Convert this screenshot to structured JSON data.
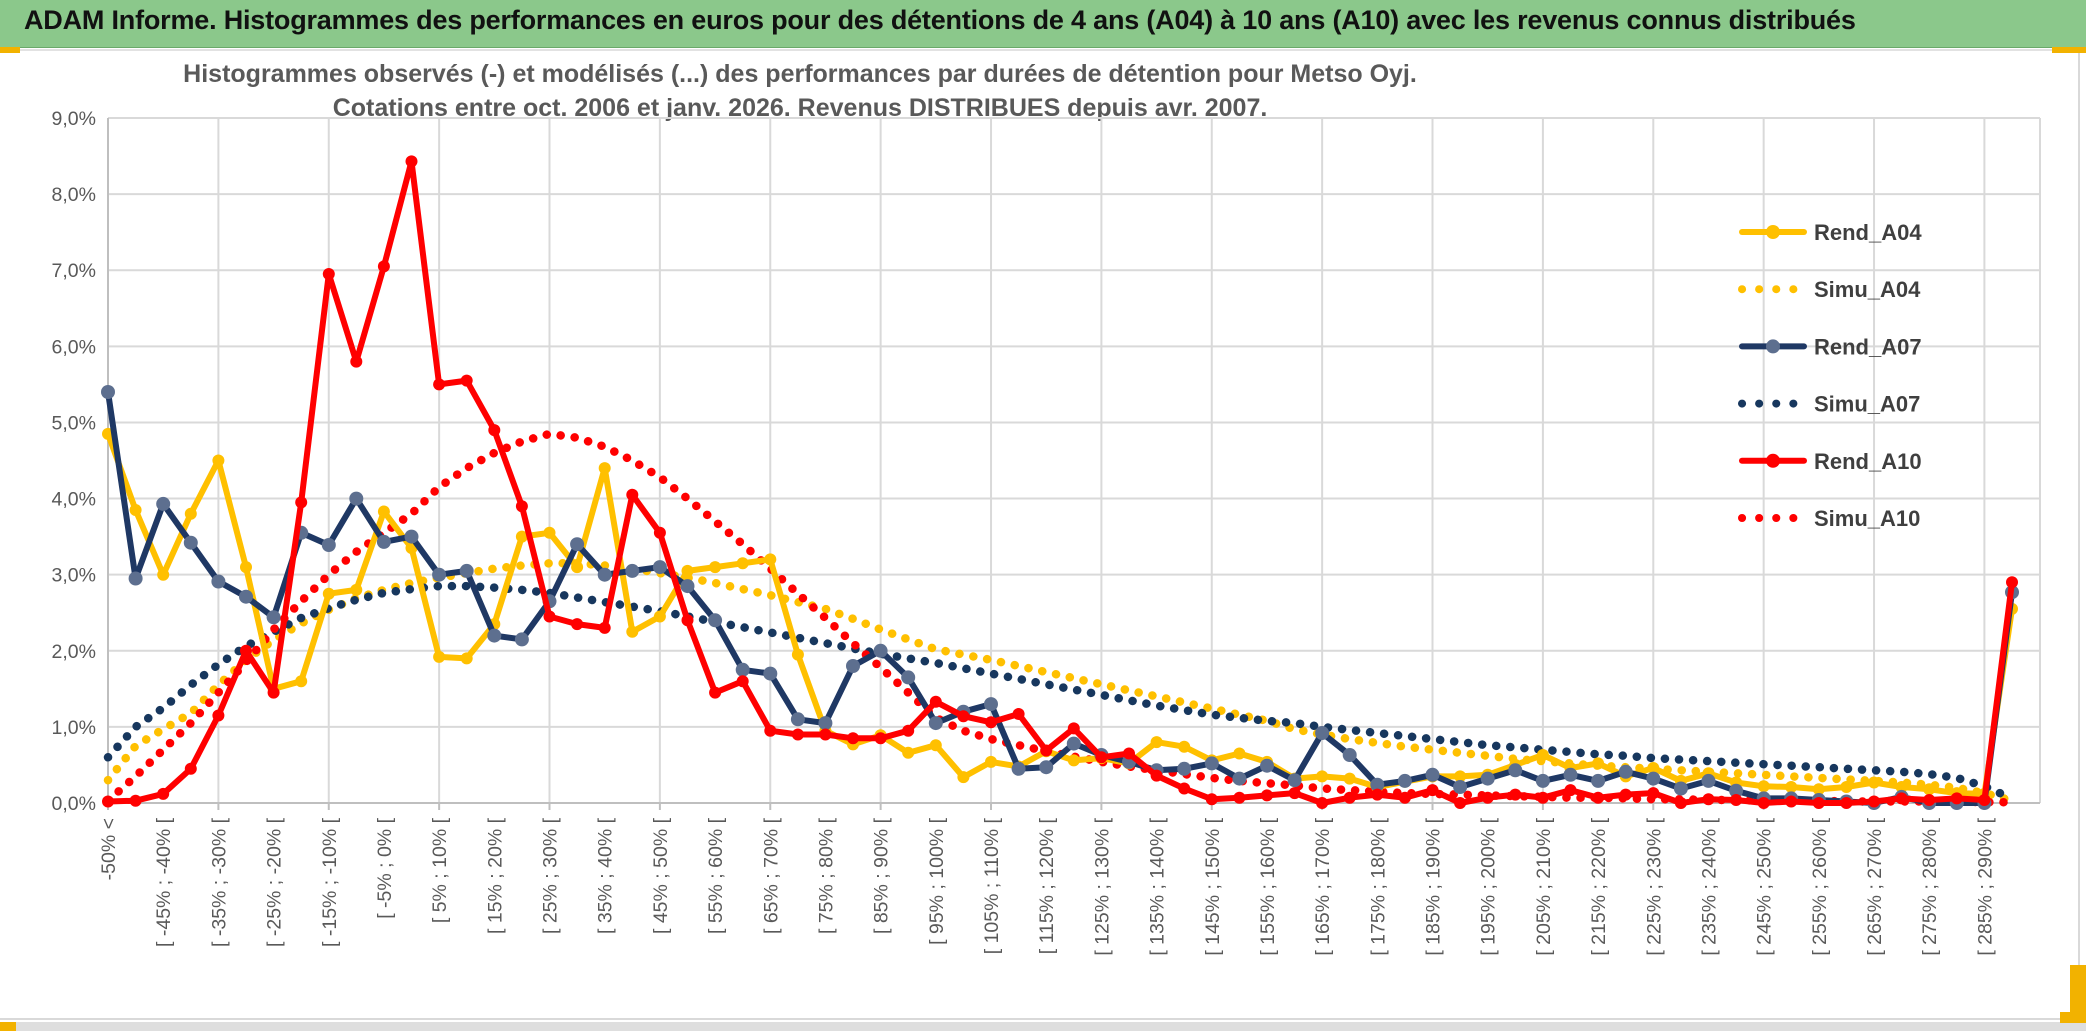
{
  "header": {
    "title": "ADAM Informe. Histogrammes des performances en euros pour des détentions de 4 ans (A04) à 10 ans (A10) avec les revenus connus distribués"
  },
  "colors": {
    "header_green": "#8bc88b",
    "gold_accent": "#f2b200",
    "grid": "#d9d9d9",
    "axis": "#bfbfbf",
    "axis_text": "#595959",
    "title_text": "#595959",
    "legend_text": "#3f3f3f",
    "series_gold": "#FFC000",
    "series_navy": "#1F3864",
    "series_navy_marker": "#5d6f8f",
    "series_red": "#FF0000"
  },
  "chart_data": {
    "type": "line",
    "title_line1": "Histogrammes observés (-) et modélisés (...) des performances par durées de détention pour Metso Oyj.",
    "title_line2": "Cotations entre oct. 2006 et janv. 2026. Revenus DISTRIBUES depuis avr. 2007.",
    "ylabel": "",
    "xlabel": "",
    "ylim": [
      0,
      9
    ],
    "grid": true,
    "legend_position": "right-upper",
    "x_label_every": 2,
    "y_tick_labels": [
      "0,0%",
      "1,0%",
      "2,0%",
      "3,0%",
      "4,0%",
      "5,0%",
      "6,0%",
      "7,0%",
      "8,0%",
      "9,0%"
    ],
    "categories": [
      "-50% <",
      "",
      "[ -45% ; -40% [",
      "",
      "[ -35% ; -30% [",
      "",
      "[ -25% ; -20% [",
      "",
      "[ -15% ; -10% [",
      "",
      "[ -5% ; 0% [",
      "",
      "[ 5% ; 10% [",
      "",
      "[ 15% ; 20% [",
      "",
      "[ 25% ; 30% [",
      "",
      "[ 35% ; 40% [",
      "",
      "[ 45% ; 50% [",
      "",
      "[ 55% ; 60% [",
      "",
      "[ 65% ; 70% [",
      "",
      "[ 75% ; 80% [",
      "",
      "[ 85% ; 90% [",
      "",
      "[ 95% ; 100% [",
      "",
      "[ 105% ; 110% [",
      "",
      "[ 115% ; 120% [",
      "",
      "[ 125% ; 130% [",
      "",
      "[ 135% ; 140% [",
      "",
      "[ 145% ; 150% [",
      "",
      "[ 155% ; 160% [",
      "",
      "[ 165% ; 170% [",
      "",
      "[ 175% ; 180% [",
      "",
      "[ 185% ; 190% [",
      "",
      "[ 195% ; 200% [",
      "",
      "[ 205% ; 210% [",
      "",
      "[ 215% ; 220% [",
      "",
      "[ 225% ; 230% [",
      "",
      "[ 235% ; 240% [",
      "",
      "[ 245% ; 250% [",
      "",
      "[ 255% ; 260% [",
      "",
      "[ 265% ; 270% [",
      "",
      "[ 275% ; 280% [",
      "",
      "[ 285% ; 290% [",
      ""
    ],
    "legend": [
      "Rend_A04",
      "Simu_A04",
      "Rend_A07",
      "Simu_A07",
      "Rend_A10",
      "Simu_A10"
    ],
    "draw_order": [
      "Simu_A04",
      "Simu_A07",
      "Simu_A10",
      "Rend_A04",
      "Rend_A07",
      "Rend_A10"
    ],
    "series": [
      {
        "name": "Rend_A04",
        "style": "solid",
        "color": "#FFC000",
        "marker_color": "#FFC000",
        "values": [
          4.85,
          3.85,
          3.0,
          3.8,
          4.5,
          3.1,
          1.5,
          1.6,
          2.75,
          2.8,
          3.83,
          3.35,
          1.92,
          1.9,
          2.35,
          3.5,
          3.55,
          3.1,
          4.4,
          2.25,
          2.45,
          3.05,
          3.1,
          3.15,
          3.2,
          1.95,
          0.95,
          0.77,
          0.89,
          0.66,
          0.76,
          0.34,
          0.54,
          0.48,
          0.68,
          0.56,
          0.59,
          0.52,
          0.8,
          0.74,
          0.56,
          0.65,
          0.54,
          0.32,
          0.35,
          0.32,
          0.21,
          0.28,
          0.35,
          0.35,
          0.37,
          0.5,
          0.63,
          0.46,
          0.52,
          0.35,
          0.46,
          0.29,
          0.39,
          0.27,
          0.22,
          0.21,
          0.18,
          0.21,
          0.27,
          0.21,
          0.18,
          0.13,
          0.12,
          2.55
        ]
      },
      {
        "name": "Simu_A04",
        "style": "dotted",
        "color": "#FFC000",
        "values": [
          0.3,
          0.75,
          0.97,
          1.18,
          1.55,
          1.88,
          2.14,
          2.36,
          2.54,
          2.69,
          2.8,
          2.89,
          2.96,
          3.02,
          3.08,
          3.12,
          3.15,
          3.15,
          3.12,
          3.08,
          3.02,
          2.96,
          2.89,
          2.81,
          2.73,
          2.64,
          2.55,
          2.42,
          2.28,
          2.15,
          2.02,
          1.95,
          1.88,
          1.8,
          1.72,
          1.64,
          1.56,
          1.48,
          1.4,
          1.32,
          1.24,
          1.16,
          1.08,
          0.97,
          0.9,
          0.84,
          0.79,
          0.74,
          0.7,
          0.66,
          0.62,
          0.58,
          0.55,
          0.52,
          0.49,
          0.47,
          0.45,
          0.43,
          0.41,
          0.39,
          0.37,
          0.35,
          0.33,
          0.31,
          0.29,
          0.27,
          0.24,
          0.2,
          0.13,
          0.03
        ]
      },
      {
        "name": "Rend_A07",
        "style": "solid",
        "color": "#1F3864",
        "marker_color": "#5d6f8f",
        "values": [
          5.4,
          2.95,
          3.93,
          3.42,
          2.91,
          2.71,
          2.44,
          3.55,
          3.39,
          4.0,
          3.43,
          3.5,
          3.0,
          3.05,
          2.2,
          2.15,
          2.65,
          3.4,
          3.0,
          3.05,
          3.1,
          2.85,
          2.4,
          1.75,
          1.7,
          1.1,
          1.05,
          1.8,
          2.0,
          1.65,
          1.05,
          1.2,
          1.3,
          0.45,
          0.47,
          0.78,
          0.63,
          0.54,
          0.43,
          0.45,
          0.52,
          0.32,
          0.49,
          0.3,
          0.92,
          0.63,
          0.24,
          0.29,
          0.37,
          0.21,
          0.32,
          0.43,
          0.29,
          0.37,
          0.29,
          0.41,
          0.32,
          0.19,
          0.29,
          0.16,
          0.06,
          0.06,
          0.04,
          0.02,
          0.0,
          0.08,
          0.0,
          0.0,
          0.0,
          2.77
        ]
      },
      {
        "name": "Simu_A07",
        "style": "dotted",
        "color": "#17375E",
        "values": [
          0.6,
          1.0,
          1.25,
          1.55,
          1.82,
          2.06,
          2.25,
          2.43,
          2.56,
          2.67,
          2.76,
          2.81,
          2.85,
          2.85,
          2.83,
          2.8,
          2.76,
          2.7,
          2.64,
          2.58,
          2.52,
          2.45,
          2.38,
          2.31,
          2.24,
          2.17,
          2.1,
          2.03,
          1.96,
          1.9,
          1.84,
          1.77,
          1.7,
          1.63,
          1.56,
          1.49,
          1.42,
          1.35,
          1.28,
          1.22,
          1.16,
          1.12,
          1.08,
          1.05,
          1.0,
          0.96,
          0.92,
          0.88,
          0.84,
          0.8,
          0.76,
          0.73,
          0.7,
          0.67,
          0.64,
          0.62,
          0.59,
          0.57,
          0.55,
          0.53,
          0.51,
          0.49,
          0.47,
          0.45,
          0.43,
          0.41,
          0.38,
          0.33,
          0.22,
          0.06
        ]
      },
      {
        "name": "Rend_A10",
        "style": "solid",
        "color": "#FF0000",
        "marker_color": "#FF0000",
        "values": [
          0.02,
          0.03,
          0.12,
          0.45,
          1.15,
          2.0,
          1.45,
          3.95,
          6.95,
          5.8,
          7.05,
          8.43,
          5.5,
          5.55,
          4.9,
          3.9,
          2.45,
          2.35,
          2.3,
          4.05,
          3.55,
          2.4,
          1.45,
          1.6,
          0.95,
          0.9,
          0.9,
          0.85,
          0.85,
          0.95,
          1.33,
          1.14,
          1.06,
          1.17,
          0.69,
          0.98,
          0.6,
          0.65,
          0.36,
          0.19,
          0.05,
          0.07,
          0.1,
          0.13,
          0.0,
          0.07,
          0.11,
          0.07,
          0.17,
          0.0,
          0.07,
          0.11,
          0.07,
          0.17,
          0.07,
          0.11,
          0.13,
          0.0,
          0.05,
          0.04,
          0.0,
          0.02,
          0.0,
          0.0,
          0.02,
          0.06,
          0.04,
          0.06,
          0.04,
          2.9
        ]
      },
      {
        "name": "Simu_A10",
        "style": "dotted",
        "color": "#FF0000",
        "values": [
          0.03,
          0.35,
          0.7,
          1.05,
          1.45,
          1.85,
          2.28,
          2.65,
          3.0,
          3.3,
          3.55,
          3.8,
          4.15,
          4.4,
          4.6,
          4.75,
          4.85,
          4.8,
          4.68,
          4.5,
          4.28,
          4.0,
          3.7,
          3.4,
          3.08,
          2.75,
          2.43,
          2.1,
          1.78,
          1.45,
          1.12,
          0.95,
          0.84,
          0.76,
          0.68,
          0.61,
          0.54,
          0.48,
          0.43,
          0.38,
          0.33,
          0.29,
          0.26,
          0.23,
          0.19,
          0.17,
          0.15,
          0.13,
          0.12,
          0.11,
          0.1,
          0.09,
          0.08,
          0.07,
          0.07,
          0.06,
          0.05,
          0.05,
          0.04,
          0.04,
          0.03,
          0.03,
          0.03,
          0.02,
          0.02,
          0.02,
          0.02,
          0.02,
          0.01,
          0.01
        ]
      }
    ]
  }
}
